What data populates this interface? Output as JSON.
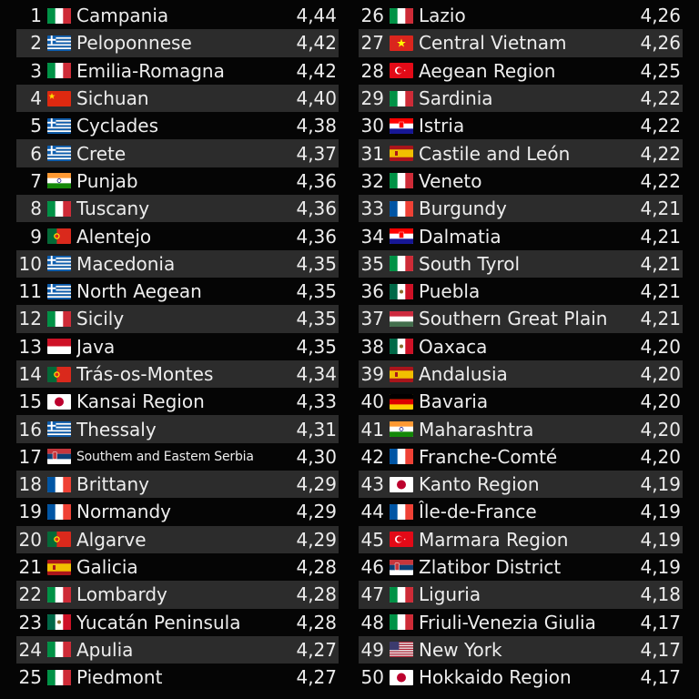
{
  "left": [
    {
      "rank": "1",
      "flag": "IT",
      "name": "Campania",
      "score": "4,44"
    },
    {
      "rank": "2",
      "flag": "GR",
      "name": "Peloponnese",
      "score": "4,42"
    },
    {
      "rank": "3",
      "flag": "IT",
      "name": "Emilia-Romagna",
      "score": "4,42"
    },
    {
      "rank": "4",
      "flag": "CN",
      "name": "Sichuan",
      "score": "4,40"
    },
    {
      "rank": "5",
      "flag": "GR",
      "name": "Cyclades",
      "score": "4,38"
    },
    {
      "rank": "6",
      "flag": "GR",
      "name": "Crete",
      "score": "4,37"
    },
    {
      "rank": "7",
      "flag": "IN",
      "name": "Punjab",
      "score": "4,36"
    },
    {
      "rank": "8",
      "flag": "IT",
      "name": "Tuscany",
      "score": "4,36"
    },
    {
      "rank": "9",
      "flag": "PT",
      "name": "Alentejo",
      "score": "4,36"
    },
    {
      "rank": "10",
      "flag": "GR",
      "name": "Macedonia",
      "score": "4,35"
    },
    {
      "rank": "11",
      "flag": "GR",
      "name": "North Aegean",
      "score": "4,35"
    },
    {
      "rank": "12",
      "flag": "IT",
      "name": "Sicily",
      "score": "4,35"
    },
    {
      "rank": "13",
      "flag": "ID",
      "name": "Java",
      "score": "4,35"
    },
    {
      "rank": "14",
      "flag": "PT",
      "name": "Trás-os-Montes",
      "score": "4,34"
    },
    {
      "rank": "15",
      "flag": "JP",
      "name": "Kansai Region",
      "score": "4,33"
    },
    {
      "rank": "16",
      "flag": "GR",
      "name": "Thessaly",
      "score": "4,31"
    },
    {
      "rank": "17",
      "flag": "RS",
      "name": "Southem and Eastem Serbia",
      "score": "4,30"
    },
    {
      "rank": "18",
      "flag": "FR",
      "name": "Brittany",
      "score": "4,29"
    },
    {
      "rank": "19",
      "flag": "FR",
      "name": "Normandy",
      "score": "4,29"
    },
    {
      "rank": "20",
      "flag": "PT",
      "name": "Algarve",
      "score": "4,29"
    },
    {
      "rank": "21",
      "flag": "ES",
      "name": "Galicia",
      "score": "4,28"
    },
    {
      "rank": "22",
      "flag": "IT",
      "name": "Lombardy",
      "score": "4,28"
    },
    {
      "rank": "23",
      "flag": "MX",
      "name": "Yucatán Peninsula",
      "score": "4,28"
    },
    {
      "rank": "24",
      "flag": "IT",
      "name": "Apulia",
      "score": "4,27"
    },
    {
      "rank": "25",
      "flag": "IT",
      "name": "Piedmont",
      "score": "4,27"
    }
  ],
  "right": [
    {
      "rank": "26",
      "flag": "IT",
      "name": "Lazio",
      "score": "4,26"
    },
    {
      "rank": "27",
      "flag": "VN",
      "name": "Central Vietnam",
      "score": "4,26"
    },
    {
      "rank": "28",
      "flag": "TR",
      "name": "Aegean Region",
      "score": "4,25"
    },
    {
      "rank": "29",
      "flag": "IT",
      "name": "Sardinia",
      "score": "4,22"
    },
    {
      "rank": "30",
      "flag": "HR",
      "name": "Istria",
      "score": "4,22"
    },
    {
      "rank": "31",
      "flag": "ES",
      "name": "Castile and León",
      "score": "4,22"
    },
    {
      "rank": "32",
      "flag": "IT",
      "name": "Veneto",
      "score": "4,22"
    },
    {
      "rank": "33",
      "flag": "FR",
      "name": "Burgundy",
      "score": "4,21"
    },
    {
      "rank": "34",
      "flag": "HR",
      "name": "Dalmatia",
      "score": "4,21"
    },
    {
      "rank": "35",
      "flag": "IT",
      "name": "South Tyrol",
      "score": "4,21"
    },
    {
      "rank": "36",
      "flag": "MX",
      "name": "Puebla",
      "score": "4,21"
    },
    {
      "rank": "37",
      "flag": "HU",
      "name": "Southern Great Plain",
      "score": "4,21"
    },
    {
      "rank": "38",
      "flag": "MX",
      "name": "Oaxaca",
      "score": "4,20"
    },
    {
      "rank": "39",
      "flag": "ES",
      "name": "Andalusia",
      "score": "4,20"
    },
    {
      "rank": "40",
      "flag": "DE",
      "name": "Bavaria",
      "score": "4,20"
    },
    {
      "rank": "41",
      "flag": "IN",
      "name": "Maharashtra",
      "score": "4,20"
    },
    {
      "rank": "42",
      "flag": "FR",
      "name": "Franche-Comté",
      "score": "4,20"
    },
    {
      "rank": "43",
      "flag": "JP",
      "name": "Kanto Region",
      "score": "4,19"
    },
    {
      "rank": "44",
      "flag": "FR",
      "name": "Île-de-France",
      "score": "4,19"
    },
    {
      "rank": "45",
      "flag": "TR",
      "name": "Marmara Region",
      "score": "4,19"
    },
    {
      "rank": "46",
      "flag": "RS",
      "name": "Zlatibor District",
      "score": "4,19"
    },
    {
      "rank": "47",
      "flag": "IT",
      "name": "Liguria",
      "score": "4,18"
    },
    {
      "rank": "48",
      "flag": "IT",
      "name": "Friuli-Venezia Giulia",
      "score": "4,17"
    },
    {
      "rank": "49",
      "flag": "US",
      "name": "New York",
      "score": "4,17"
    },
    {
      "rank": "50",
      "flag": "JP",
      "name": "Hokkaido Region",
      "score": "4,17"
    }
  ],
  "flag_icons": {
    "IT": "italy-flag-icon",
    "GR": "greece-flag-icon",
    "CN": "china-flag-icon",
    "IN": "india-flag-icon",
    "PT": "portugal-flag-icon",
    "ID": "indonesia-flag-icon",
    "JP": "japan-flag-icon",
    "RS": "serbia-flag-icon",
    "FR": "france-flag-icon",
    "ES": "spain-flag-icon",
    "MX": "mexico-flag-icon",
    "VN": "vietnam-flag-icon",
    "TR": "turkey-flag-icon",
    "HR": "croatia-flag-icon",
    "HU": "hungary-flag-icon",
    "DE": "germany-flag-icon",
    "US": "usa-flag-icon"
  },
  "colors": {
    "background": "#050505",
    "row_alt": "#2c2c2c",
    "text": "#ececec"
  }
}
